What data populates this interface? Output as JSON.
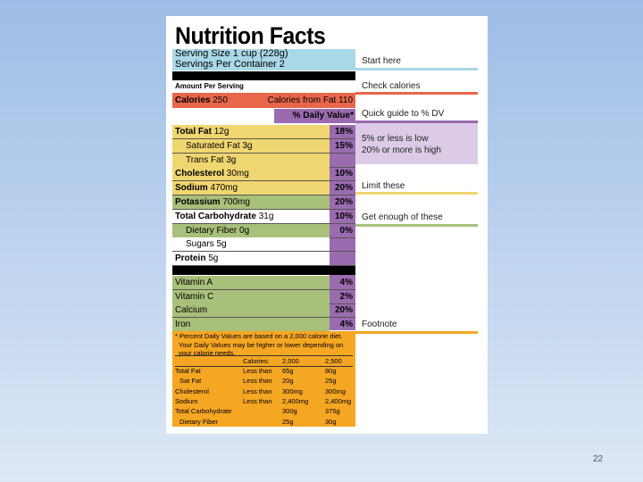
{
  "label": {
    "title": "Nutrition Facts",
    "serving_size": "Serving Size 1 cup (228g)",
    "servings": "Servings Per Container  2",
    "amount_per_serving": "Amount Per Serving",
    "calories_label": "Calories",
    "calories_value": "250",
    "calories_fat": "Calories from Fat 110",
    "daily_value": "% Daily Value*",
    "nutrients": [
      {
        "name": "Total Fat",
        "amount": "12g",
        "dv": "18%",
        "color": "#f0d670"
      },
      {
        "name": "Saturated Fat",
        "amount": "3g",
        "dv": "15%",
        "color": "#f0d670"
      },
      {
        "name": "Trans Fat",
        "amount": "3g",
        "color": "#f0d670"
      },
      {
        "name": "Cholesterol",
        "amount": "30mg",
        "dv": "10%",
        "color": "#f0d670"
      },
      {
        "name": "Sodium",
        "amount": "470mg",
        "dv": "20%",
        "color": "#f0d670"
      },
      {
        "name": "Potassium",
        "amount": "700mg",
        "dv": "20%",
        "color": "#a8c07a"
      },
      {
        "name": "Total Carbohydrate",
        "amount": "31g",
        "dv": "10%",
        "color": "#ffffff"
      },
      {
        "name": "Dietary Fiber",
        "amount": "0g",
        "dv": "0%",
        "color": "#a8c07a"
      },
      {
        "name": "Sugars",
        "amount": "5g",
        "color": "#ffffff"
      },
      {
        "name": "Protein",
        "amount": "5g",
        "color": "#ffffff"
      }
    ],
    "vitamins": [
      {
        "name": "Vitamin A",
        "dv": "4%"
      },
      {
        "name": "Vitamin C",
        "dv": "2%"
      },
      {
        "name": "Calcium",
        "dv": "20%"
      },
      {
        "name": "Iron",
        "dv": "4%"
      }
    ],
    "footnote": [
      "* Percent Daily Values are based on a 2,000 calorie diet.",
      "Your Daily Values may be higher or lower depending on",
      "your calorie needs."
    ],
    "footnote_table": {
      "header": {
        "calories": "Calories:",
        "values": [
          "2,000",
          "2,500"
        ]
      },
      "rows": [
        {
          "name": "Total Fat",
          "limit": "Less than",
          "values": [
            "65g",
            "80g"
          ]
        },
        {
          "name": "Sat Fat",
          "limit": "Less than",
          "values": [
            "20g",
            "25g"
          ]
        },
        {
          "name": "Cholesterol",
          "limit": "Less than",
          "values": [
            "300mg",
            "300mg"
          ]
        },
        {
          "name": "Sodium",
          "limit": "Less than",
          "values": [
            "2,400mg",
            "2,400mg"
          ]
        },
        {
          "name": "Total Carbohydrate",
          "values": [
            "300g",
            "375g"
          ]
        },
        {
          "name": "Dietary Fiber",
          "values": [
            "25g",
            "30g"
          ]
        }
      ]
    }
  },
  "annotations": {
    "start": "Start here",
    "calories": "Check calories",
    "dv_guide": "Quick guide to % DV",
    "low": "5% or less is low",
    "high": "20% or more is high",
    "limit": "Limit these",
    "enough": "Get enough of these",
    "footnote": "Footnote"
  },
  "page_number": "22"
}
